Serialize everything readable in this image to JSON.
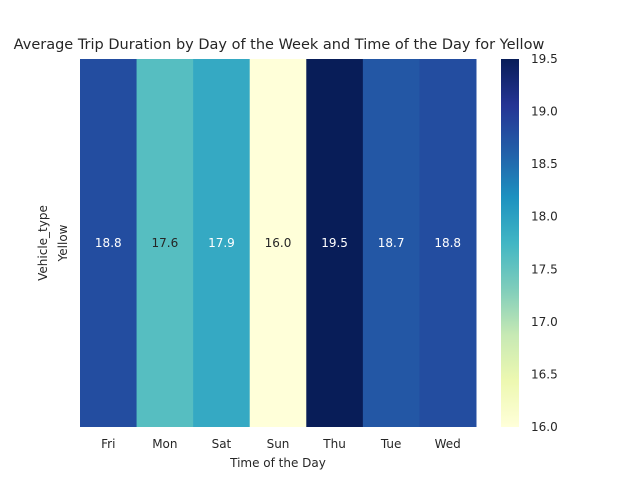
{
  "chart_data": {
    "type": "heatmap",
    "title": "Average Trip Duration by Day of the Week and Time of the Day for Yellow",
    "xlabel": "Time of the Day",
    "ylabel": "Vehicle_type",
    "x": [
      "Fri",
      "Mon",
      "Sat",
      "Sun",
      "Thu",
      "Tue",
      "Wed"
    ],
    "y": [
      "Yellow"
    ],
    "values": [
      [
        18.8,
        17.6,
        17.9,
        16.0,
        19.5,
        18.7,
        18.8
      ]
    ],
    "value_labels": [
      "18.8",
      "17.6",
      "17.9",
      "16.0",
      "19.5",
      "18.7",
      "18.8"
    ],
    "colormap": "YlGnBu",
    "colorbar": {
      "range": [
        16.0,
        19.5
      ],
      "ticks": [
        16.0,
        16.5,
        17.0,
        17.5,
        18.0,
        18.5,
        19.0,
        19.5
      ],
      "tick_labels": [
        "16.0",
        "16.5",
        "17.0",
        "17.5",
        "18.0",
        "18.5",
        "19.0",
        "19.5"
      ]
    },
    "grid": false
  }
}
